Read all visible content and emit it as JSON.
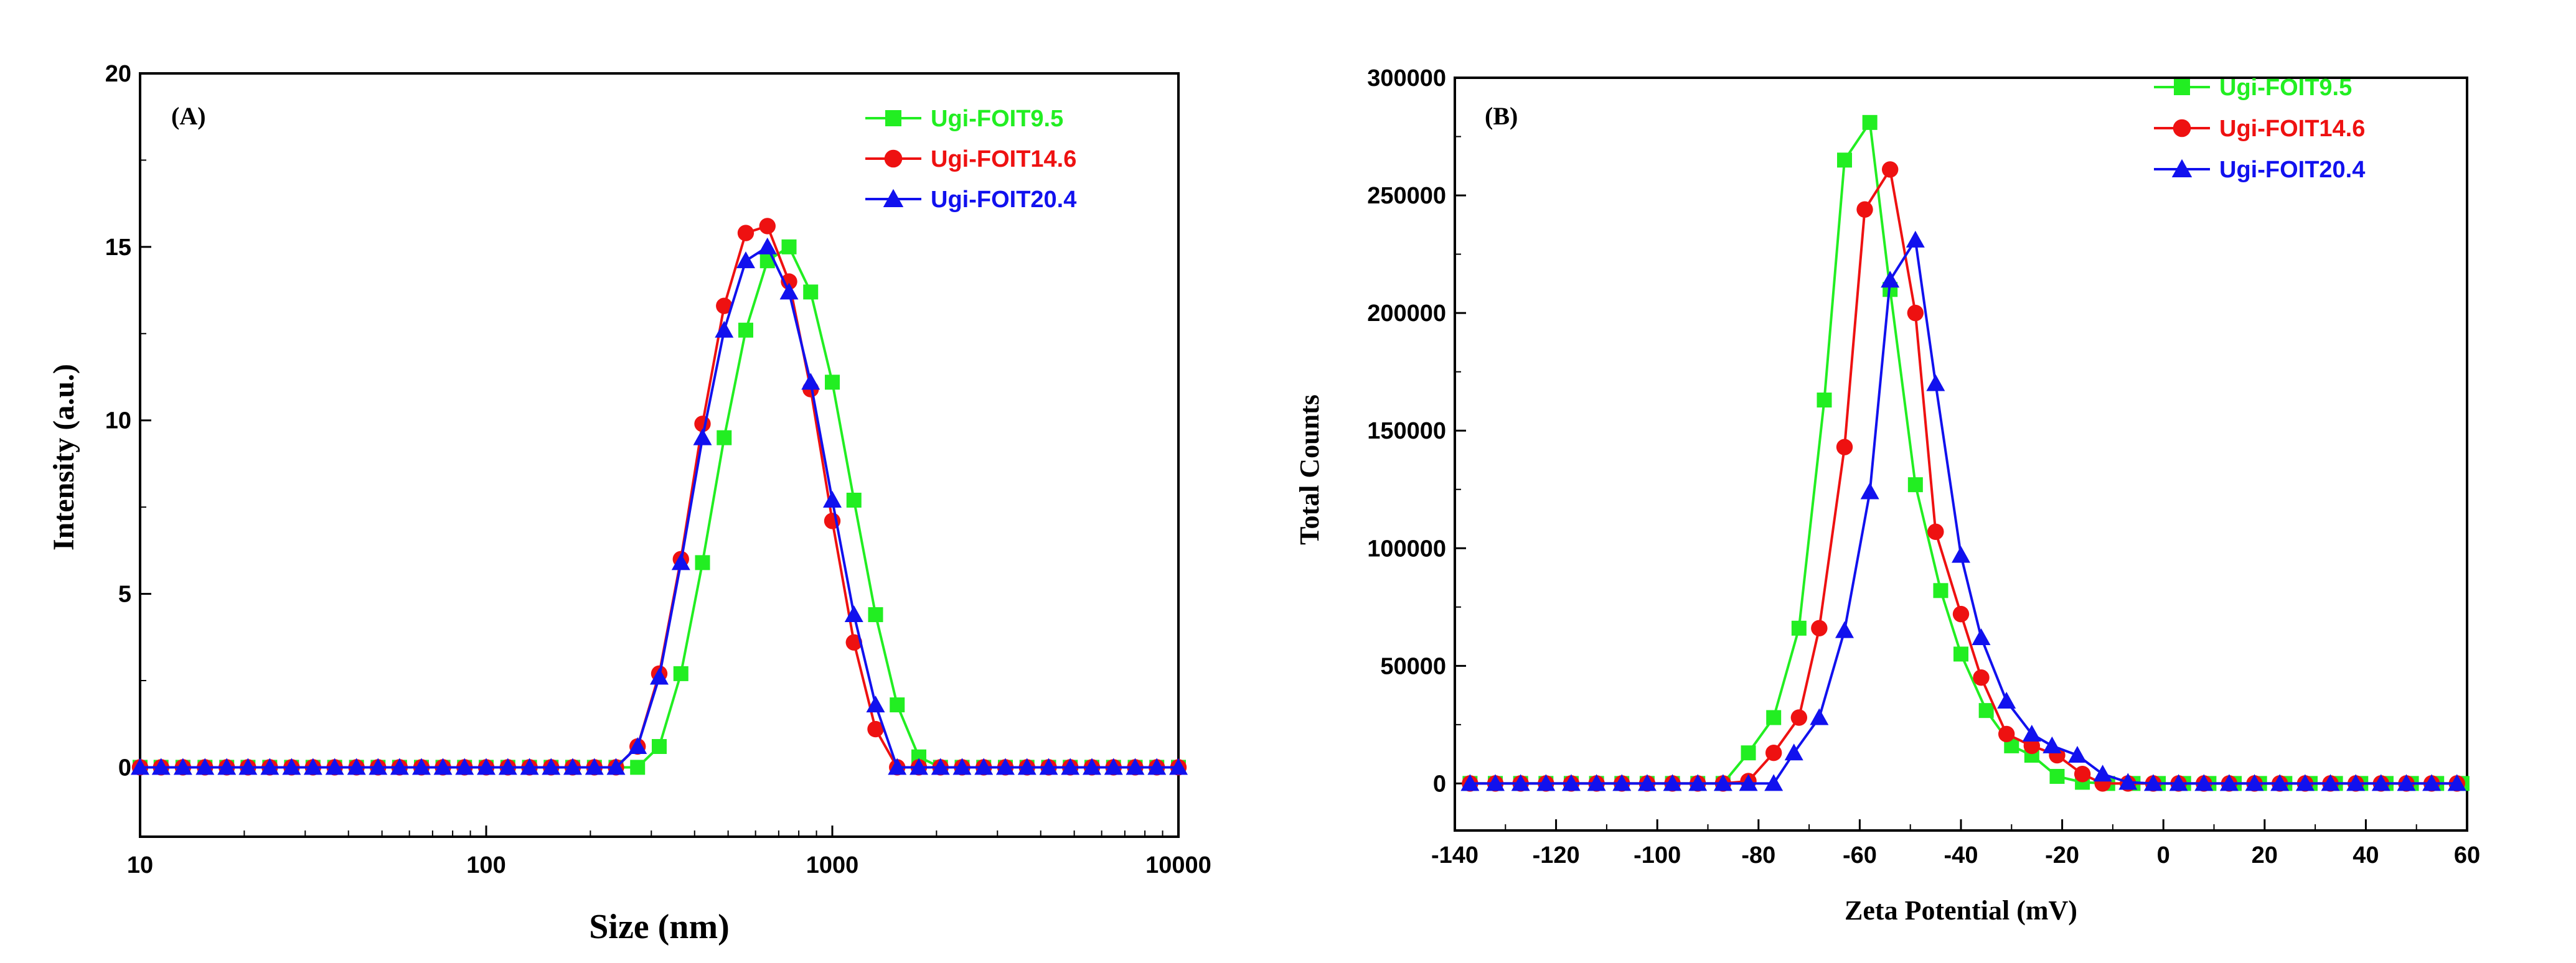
{
  "chart_data": [
    {
      "type": "line",
      "panel_label": "(A)",
      "xlabel": "Size (nm)",
      "ylabel": "Intensity (a.u.)",
      "xscale": "log",
      "xlim": [
        10,
        10000
      ],
      "ylim": [
        -2,
        20
      ],
      "xticks": [
        10,
        100,
        1000,
        10000
      ],
      "xtick_labels": [
        "10",
        "100",
        "1000",
        "10000"
      ],
      "yticks": [
        0,
        5,
        10,
        15,
        20
      ],
      "ytick_labels": [
        "0",
        "5",
        "10",
        "15",
        "20"
      ],
      "legend_position": "top-right",
      "x": [
        10,
        11.5,
        13.3,
        15.4,
        17.8,
        20.5,
        23.7,
        27.4,
        31.6,
        36.5,
        42.2,
        48.7,
        56.2,
        65,
        75,
        86.6,
        100,
        115.5,
        133.4,
        154,
        177.8,
        205.4,
        237.1,
        273.8,
        316.2,
        365.2,
        421.7,
        487,
        562.3,
        649.4,
        749.9,
        865.9,
        1000,
        1154.8,
        1333.5,
        1539.9,
        1778.3,
        2053.5,
        2371.4,
        2738.4,
        3162.3,
        3651.7,
        4217,
        4869.7,
        5623.4,
        6493.8,
        7498.9,
        8659.6,
        10000
      ],
      "series": [
        {
          "name": "Ugi-FOIT9.5",
          "color": "#22ee22",
          "marker": "square",
          "values": [
            0,
            0,
            0,
            0,
            0,
            0,
            0,
            0,
            0,
            0,
            0,
            0,
            0,
            0,
            0,
            0,
            0,
            0,
            0,
            0,
            0,
            0,
            0,
            0,
            0.6,
            2.7,
            5.9,
            9.5,
            12.6,
            14.6,
            15.0,
            13.7,
            11.1,
            7.7,
            4.4,
            1.8,
            0.3,
            0,
            0,
            0,
            0,
            0,
            0,
            0,
            0,
            0,
            0,
            0,
            0
          ]
        },
        {
          "name": "Ugi-FOIT14.6",
          "color": "#ee1111",
          "marker": "circle",
          "values": [
            0,
            0,
            0,
            0,
            0,
            0,
            0,
            0,
            0,
            0,
            0,
            0,
            0,
            0,
            0,
            0,
            0,
            0,
            0,
            0,
            0,
            0,
            0,
            0.6,
            2.7,
            6.0,
            9.9,
            13.3,
            15.4,
            15.6,
            14.0,
            10.9,
            7.1,
            3.6,
            1.1,
            0,
            0,
            0,
            0,
            0,
            0,
            0,
            0,
            0,
            0,
            0,
            0,
            0,
            0
          ]
        },
        {
          "name": "Ugi-FOIT20.4",
          "color": "#1111ee",
          "marker": "triangle",
          "values": [
            0,
            0,
            0,
            0,
            0,
            0,
            0,
            0,
            0,
            0,
            0,
            0,
            0,
            0,
            0,
            0,
            0,
            0,
            0,
            0,
            0,
            0,
            0,
            0.6,
            2.6,
            5.9,
            9.5,
            12.6,
            14.6,
            15.0,
            13.7,
            11.1,
            7.7,
            4.4,
            1.8,
            0,
            0,
            0,
            0,
            0,
            0,
            0,
            0,
            0,
            0,
            0,
            0,
            0,
            0
          ]
        }
      ]
    },
    {
      "type": "line",
      "panel_label": "(B)",
      "xlabel": "Zeta Potential (mV)",
      "ylabel": "Total Counts",
      "xscale": "linear",
      "xlim": [
        -140,
        60
      ],
      "ylim": [
        -20000,
        300000
      ],
      "xticks": [
        -140,
        -120,
        -100,
        -80,
        -60,
        -40,
        -20,
        0,
        20,
        40,
        60
      ],
      "xtick_labels": [
        "-140",
        "-120",
        "-100",
        "-80",
        "-60",
        "-40",
        "-20",
        "0",
        "20",
        "40",
        "60"
      ],
      "yticks": [
        0,
        50000,
        100000,
        150000,
        200000,
        250000,
        300000
      ],
      "ytick_labels": [
        "0",
        "50000",
        "100000",
        "150000",
        "200000",
        "250000",
        "300000"
      ],
      "legend_position": "top-right",
      "series": [
        {
          "name": "Ugi-FOIT9.5",
          "color": "#22ee22",
          "marker": "square",
          "x": [
            -137,
            -132,
            -127,
            -122,
            -117,
            -112,
            -107,
            -102,
            -97,
            -92,
            -87,
            -82,
            -77,
            -72,
            -67,
            -63,
            -58,
            -54,
            -49,
            -44,
            -40,
            -35,
            -30,
            -26,
            -21,
            -16,
            -11,
            -6,
            -1,
            4,
            9,
            14,
            19,
            24,
            29,
            34,
            39,
            44,
            49,
            54,
            59
          ],
          "values": [
            0,
            0,
            0,
            0,
            0,
            0,
            0,
            0,
            0,
            0,
            0,
            13000,
            28000,
            66000,
            163000,
            265000,
            281000,
            210000,
            127000,
            82000,
            55000,
            31000,
            16000,
            12000,
            3000,
            500,
            0,
            0,
            0,
            0,
            0,
            0,
            0,
            0,
            0,
            0,
            0,
            0,
            0,
            0,
            0
          ]
        },
        {
          "name": "Ugi-FOIT14.6",
          "color": "#ee1111",
          "marker": "circle",
          "x": [
            -137,
            -132,
            -127,
            -122,
            -117,
            -112,
            -107,
            -102,
            -97,
            -92,
            -87,
            -82,
            -77,
            -72,
            -68,
            -63,
            -59,
            -54,
            -49,
            -45,
            -40,
            -36,
            -31,
            -26,
            -21,
            -16,
            -12,
            -7,
            -2,
            3,
            8,
            13,
            18,
            23,
            28,
            33,
            38,
            43,
            48,
            53,
            58
          ],
          "values": [
            0,
            0,
            0,
            0,
            0,
            0,
            0,
            0,
            0,
            0,
            0,
            1000,
            13000,
            28000,
            66000,
            143000,
            244000,
            261000,
            200000,
            107000,
            72000,
            45000,
            21000,
            16000,
            12000,
            4000,
            0,
            0,
            0,
            0,
            0,
            0,
            0,
            0,
            0,
            0,
            0,
            0,
            0,
            0,
            0
          ]
        },
        {
          "name": "Ugi-FOIT20.4",
          "color": "#1111ee",
          "marker": "triangle",
          "x": [
            -137,
            -132,
            -127,
            -122,
            -117,
            -112,
            -107,
            -102,
            -97,
            -92,
            -87,
            -82,
            -77,
            -73,
            -68,
            -63,
            -58,
            -54,
            -49,
            -45,
            -40,
            -36,
            -31,
            -26,
            -22,
            -17,
            -12,
            -7,
            -2,
            3,
            8,
            13,
            18,
            23,
            28,
            33,
            38,
            43,
            48,
            53,
            58
          ],
          "values": [
            0,
            0,
            0,
            0,
            0,
            0,
            0,
            0,
            0,
            0,
            0,
            0,
            0,
            13000,
            28000,
            65000,
            124000,
            214000,
            231000,
            170000,
            97000,
            62000,
            35000,
            21000,
            16000,
            12000,
            4000,
            500,
            0,
            0,
            0,
            0,
            0,
            0,
            0,
            0,
            0,
            0,
            0,
            0,
            0
          ]
        }
      ]
    }
  ]
}
